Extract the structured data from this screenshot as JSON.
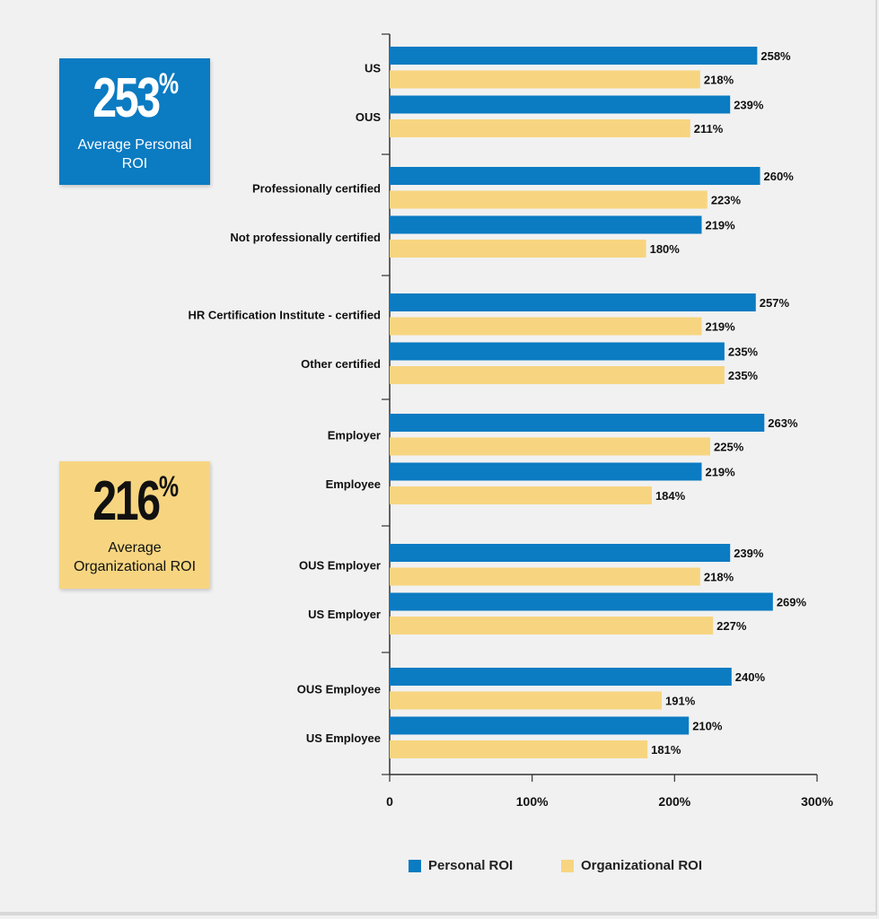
{
  "stats": {
    "personal": {
      "value": "253",
      "unit": "%",
      "caption": "Average Personal ROI",
      "color": "#0b7bc2"
    },
    "organizational": {
      "value": "216",
      "unit": "%",
      "caption": "Average Organizational ROI",
      "color": "#f7d580"
    }
  },
  "legend": {
    "personal_label": "Personal ROI",
    "organizational_label": "Organizational ROI"
  },
  "chart_data": {
    "type": "bar",
    "orientation": "horizontal",
    "categories": [
      "US",
      "OUS",
      "Professionally certified",
      "Not professionally certified",
      "HR Certification Institute - certified",
      "Other certified",
      "Employer",
      "Employee",
      "OUS Employer",
      "US Employer",
      "OUS Employee",
      "US Employee"
    ],
    "groups": [
      [
        "US",
        "OUS"
      ],
      [
        "Professionally certified",
        "Not professionally certified"
      ],
      [
        "HR Certification Institute - certified",
        "Other certified"
      ],
      [
        "Employer",
        "Employee"
      ],
      [
        "OUS Employer",
        "US Employer"
      ],
      [
        "OUS Employee",
        "US Employee"
      ]
    ],
    "series": [
      {
        "name": "Personal ROI",
        "color": "#0b7bc2",
        "values": [
          258,
          239,
          260,
          219,
          257,
          235,
          263,
          219,
          239,
          269,
          240,
          210
        ]
      },
      {
        "name": "Organizational ROI",
        "color": "#f7d580",
        "values": [
          218,
          211,
          223,
          180,
          219,
          235,
          225,
          184,
          218,
          227,
          191,
          181
        ]
      }
    ],
    "value_suffix": "%",
    "xlim": [
      0,
      300
    ],
    "xticks": [
      0,
      100,
      200,
      300
    ],
    "xtick_labels": [
      "0",
      "100%",
      "200%",
      "300%"
    ],
    "grid": false,
    "legend_position": "bottom"
  }
}
